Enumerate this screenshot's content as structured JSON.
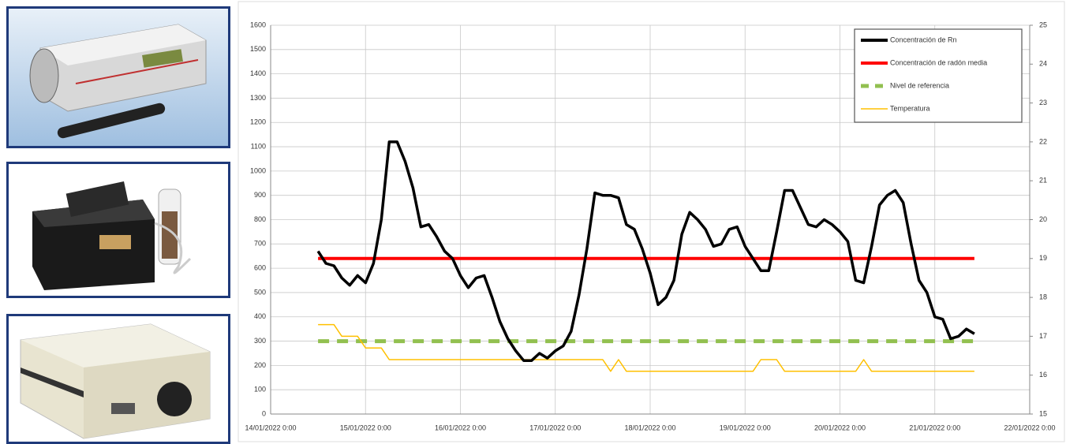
{
  "chart_data": {
    "type": "line",
    "xlim": [
      "2022-01-14T00:00",
      "2022-01-22T00:00"
    ],
    "xticks": [
      {
        "value": "2022-01-14T00:00",
        "label": "14/01/2022 0:00"
      },
      {
        "value": "2022-01-15T00:00",
        "label": "15/01/2022 0:00"
      },
      {
        "value": "2022-01-16T00:00",
        "label": "16/01/2022 0:00"
      },
      {
        "value": "2022-01-17T00:00",
        "label": "17/01/2022 0:00"
      },
      {
        "value": "2022-01-18T00:00",
        "label": "18/01/2022 0:00"
      },
      {
        "value": "2022-01-19T00:00",
        "label": "19/01/2022 0:00"
      },
      {
        "value": "2022-01-20T00:00",
        "label": "20/01/2022 0:00"
      },
      {
        "value": "2022-01-21T00:00",
        "label": "21/01/2022 0:00"
      },
      {
        "value": "2022-01-22T00:00",
        "label": "22/01/2022 0:00"
      }
    ],
    "ylim": [
      0,
      1600
    ],
    "yticks": [
      0,
      100,
      200,
      300,
      400,
      500,
      600,
      700,
      800,
      900,
      1000,
      1100,
      1200,
      1300,
      1400,
      1500,
      1600
    ],
    "y2lim": [
      15,
      25
    ],
    "y2ticks": [
      15,
      16,
      17,
      18,
      19,
      20,
      21,
      22,
      23,
      24,
      25
    ],
    "grid": true,
    "legend": "upper right",
    "series": [
      {
        "name": "Concentración de Rn",
        "color": "#000000",
        "style": "solid",
        "x": [
          "2022-01-14T12:00",
          "2022-01-14T14:00",
          "2022-01-14T16:00",
          "2022-01-14T18:00",
          "2022-01-14T20:00",
          "2022-01-14T22:00",
          "2022-01-15T00:00",
          "2022-01-15T02:00",
          "2022-01-15T04:00",
          "2022-01-15T06:00",
          "2022-01-15T08:00",
          "2022-01-15T10:00",
          "2022-01-15T12:00",
          "2022-01-15T14:00",
          "2022-01-15T16:00",
          "2022-01-15T18:00",
          "2022-01-15T20:00",
          "2022-01-15T22:00",
          "2022-01-16T00:00",
          "2022-01-16T02:00",
          "2022-01-16T04:00",
          "2022-01-16T06:00",
          "2022-01-16T08:00",
          "2022-01-16T10:00",
          "2022-01-16T12:00",
          "2022-01-16T14:00",
          "2022-01-16T16:00",
          "2022-01-16T18:00",
          "2022-01-16T20:00",
          "2022-01-16T22:00",
          "2022-01-17T00:00",
          "2022-01-17T02:00",
          "2022-01-17T04:00",
          "2022-01-17T06:00",
          "2022-01-17T08:00",
          "2022-01-17T10:00",
          "2022-01-17T12:00",
          "2022-01-17T14:00",
          "2022-01-17T16:00",
          "2022-01-17T18:00",
          "2022-01-17T20:00",
          "2022-01-17T22:00",
          "2022-01-18T00:00",
          "2022-01-18T02:00",
          "2022-01-18T04:00",
          "2022-01-18T06:00",
          "2022-01-18T08:00",
          "2022-01-18T10:00",
          "2022-01-18T12:00",
          "2022-01-18T14:00",
          "2022-01-18T16:00",
          "2022-01-18T18:00",
          "2022-01-18T20:00",
          "2022-01-18T22:00",
          "2022-01-19T00:00",
          "2022-01-19T02:00",
          "2022-01-19T04:00",
          "2022-01-19T06:00",
          "2022-01-19T08:00",
          "2022-01-19T10:00",
          "2022-01-19T12:00",
          "2022-01-19T14:00",
          "2022-01-19T16:00",
          "2022-01-19T18:00",
          "2022-01-19T20:00",
          "2022-01-19T22:00",
          "2022-01-20T00:00",
          "2022-01-20T02:00",
          "2022-01-20T04:00",
          "2022-01-20T06:00",
          "2022-01-20T08:00",
          "2022-01-20T10:00",
          "2022-01-20T12:00",
          "2022-01-20T14:00",
          "2022-01-20T16:00",
          "2022-01-20T18:00",
          "2022-01-20T20:00",
          "2022-01-20T22:00",
          "2022-01-21T00:00",
          "2022-01-21T02:00",
          "2022-01-21T04:00",
          "2022-01-21T06:00",
          "2022-01-21T08:00",
          "2022-01-21T10:00"
        ],
        "values": [
          670,
          620,
          610,
          560,
          530,
          570,
          540,
          620,
          800,
          1120,
          1120,
          1040,
          930,
          770,
          780,
          730,
          670,
          640,
          570,
          520,
          560,
          570,
          480,
          380,
          310,
          260,
          220,
          220,
          250,
          230,
          260,
          280,
          340,
          490,
          680,
          910,
          900,
          900,
          890,
          780,
          760,
          680,
          580,
          450,
          480,
          550,
          740,
          830,
          800,
          760,
          690,
          700,
          760,
          770,
          690,
          640,
          590,
          590,
          750,
          920,
          920,
          850,
          780,
          770,
          800,
          780,
          750,
          710,
          550,
          540,
          690,
          860,
          900,
          920,
          870,
          700,
          550,
          500,
          400,
          390,
          310,
          320,
          350,
          330
        ]
      },
      {
        "name": "Concentración de radón media",
        "color": "#ff0000",
        "style": "solid",
        "x": [
          "2022-01-14T12:00",
          "2022-01-21T10:00"
        ],
        "values": [
          640,
          640
        ]
      },
      {
        "name": "Nivel de referencia",
        "color": "#92c050",
        "style": "dashed",
        "x": [
          "2022-01-14T12:00",
          "2022-01-21T10:00"
        ],
        "values": [
          300,
          300
        ]
      },
      {
        "name": "Temperatura",
        "color": "#ffc000",
        "style": "thin",
        "axis": "y2",
        "x": [
          "2022-01-14T12:00",
          "2022-01-14T16:00",
          "2022-01-14T18:00",
          "2022-01-14T22:00",
          "2022-01-15T00:00",
          "2022-01-15T04:00",
          "2022-01-15T06:00",
          "2022-01-17T12:00",
          "2022-01-17T14:00",
          "2022-01-17T16:00",
          "2022-01-17T18:00",
          "2022-01-19T02:00",
          "2022-01-19T04:00",
          "2022-01-19T08:00",
          "2022-01-19T10:00",
          "2022-01-20T04:00",
          "2022-01-20T06:00",
          "2022-01-20T08:00",
          "2022-01-21T10:00"
        ],
        "values": [
          17.3,
          17.3,
          17.0,
          17.0,
          16.7,
          16.7,
          16.4,
          16.4,
          16.1,
          16.4,
          16.1,
          16.1,
          16.4,
          16.4,
          16.1,
          16.1,
          16.4,
          16.1,
          16.1
        ]
      }
    ]
  }
}
